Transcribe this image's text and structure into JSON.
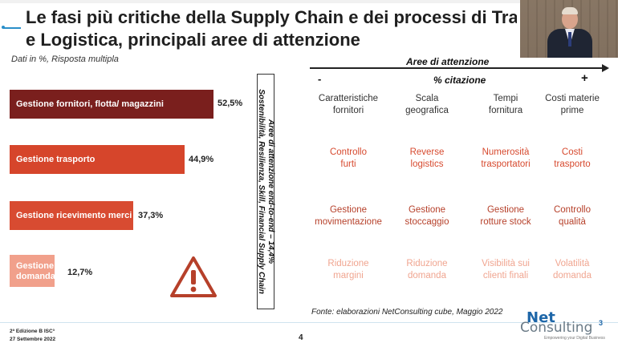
{
  "slide": {
    "title_line1": "Le fasi più critiche della Supply Chain e dei processi di Tras",
    "title_line2": "e Logistica, principali aree di attenzione",
    "subtitle": "Dati in %, Risposta multipla",
    "accent_color": "#2a8fc9"
  },
  "chart_data": {
    "type": "bar",
    "orientation": "horizontal",
    "categories": [
      "Gestione fornitori, flotta/ magazzini",
      "Gestione trasporto",
      "Gestione ricevimento merci",
      "Gestione domanda"
    ],
    "values": [
      52.5,
      44.9,
      37.3,
      12.7
    ],
    "value_labels": [
      "52,5%",
      "44,9%",
      "37,3%",
      "12,7%"
    ],
    "bar_colors": [
      "#7a1f1d",
      "#d6452b",
      "#d84b31",
      "#f1a08b"
    ]
  },
  "bars": [
    {
      "label": "Gestione fornitori, flotta/ magazzini",
      "value_label": "52,5%"
    },
    {
      "label": "Gestione trasporto",
      "value_label": "44,9%"
    },
    {
      "label": "Gestione ricevimento merci",
      "value_label": "37,3%"
    },
    {
      "label_line1": "Gestione",
      "label_line2": "domanda",
      "value_label": "12,7%"
    }
  ],
  "vertical_box": {
    "line1": "Aree di attenzione end-to-end – 14,4%",
    "line2": "Sostenibilità, Resilienza, Skill, Financial Supply Chain"
  },
  "attention": {
    "title": "Aree di attenzione",
    "axis_label": "% citazione",
    "minus": "-",
    "plus": "+",
    "rows": [
      [
        {
          "l1": "Caratteristiche",
          "l2": "fornitori"
        },
        {
          "l1": "Scala",
          "l2": "geografica"
        },
        {
          "l1": "Tempi",
          "l2": "fornitura"
        },
        {
          "l1": "Costi materie",
          "l2": "prime"
        }
      ],
      [
        {
          "l1": "Controllo",
          "l2": "furti"
        },
        {
          "l1": "Reverse",
          "l2": "logistics"
        },
        {
          "l1": "Numerosità",
          "l2": "trasportatori"
        },
        {
          "l1": "Costi",
          "l2": "trasporto"
        }
      ],
      [
        {
          "l1": "Gestione",
          "l2": "movimentazione"
        },
        {
          "l1": "Gestione",
          "l2": "stoccaggio"
        },
        {
          "l1": "Gestione",
          "l2": "rotture stock"
        },
        {
          "l1": "Controllo",
          "l2": "qualità"
        }
      ],
      [
        {
          "l1": "Riduzione",
          "l2": "margini"
        },
        {
          "l1": "Riduzione",
          "l2": "domanda"
        },
        {
          "l1": "Visibilità sui",
          "l2": "clienti finali"
        },
        {
          "l1": "Volatilità",
          "l2": "domanda"
        }
      ]
    ]
  },
  "source": "Fonte: elaborazioni NetConsulting cube, Maggio 2022",
  "footer": {
    "line1": "2ª Edizione B ISC³",
    "line2": "27 Settembre 2022",
    "page": "4"
  },
  "logo": {
    "net": "Net",
    "consulting": "Consulting",
    "cube": "3",
    "tagline": "Empowering your Digital Business"
  },
  "icons": {
    "warning": "warning-triangle-icon",
    "video": "presenter-video-feed"
  }
}
